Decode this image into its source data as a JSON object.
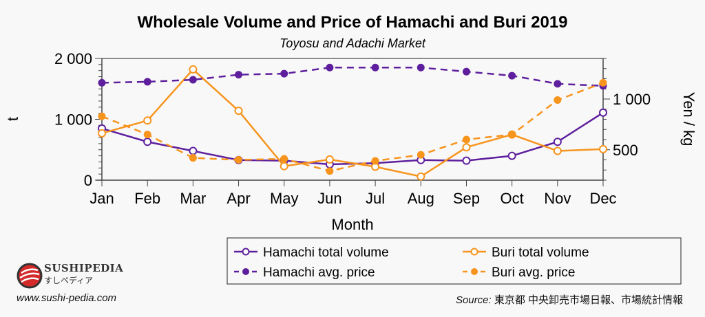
{
  "chart_data": {
    "type": "line",
    "title": "Wholesale Volume and Price of Hamachi and Buri 2019",
    "subtitle": "Toyosu and Adachi Market",
    "xlabel": "Month",
    "ylabel": "t",
    "ylabel_right": "Yen / kg",
    "categories": [
      "Jan",
      "Feb",
      "Mar",
      "Apr",
      "May",
      "Jun",
      "Jul",
      "Aug",
      "Sep",
      "Oct",
      "Nov",
      "Dec"
    ],
    "ylim": [
      0,
      2000
    ],
    "yticks": [
      0,
      1000,
      2000
    ],
    "ytick_labels": [
      "0",
      "1 000",
      "2 000"
    ],
    "ylim_right": [
      200,
      1400
    ],
    "yticks_right": [
      500,
      1000
    ],
    "ytick_labels_right": [
      "500",
      "1 000"
    ],
    "grid": false,
    "legend_placement": "bottom",
    "series": [
      {
        "name": "Hamachi total volume",
        "axis": "left",
        "style": "solid-open",
        "color": "#5e1f9e",
        "values": [
          850,
          630,
          480,
          330,
          320,
          260,
          280,
          330,
          320,
          400,
          630,
          1110
        ]
      },
      {
        "name": "Buri total volume",
        "axis": "left",
        "style": "solid-open",
        "color": "#f7941d",
        "values": [
          770,
          980,
          1820,
          1140,
          230,
          340,
          220,
          60,
          540,
          750,
          480,
          510
        ]
      },
      {
        "name": "Hamachi avg. price",
        "axis": "right",
        "style": "dashed-filled",
        "color": "#5e1f9e",
        "values": [
          1160,
          1170,
          1190,
          1240,
          1250,
          1310,
          1310,
          1310,
          1270,
          1230,
          1150,
          1130
        ]
      },
      {
        "name": "Buri avg. price",
        "axis": "right",
        "style": "dashed-filled",
        "color": "#f7941d",
        "values": [
          830,
          650,
          420,
          400,
          410,
          290,
          390,
          450,
          600,
          650,
          990,
          1160
        ]
      }
    ]
  },
  "branding": {
    "logo_name": "SUSHIPEDIA",
    "logo_kana": "すしペディア",
    "url": "www.sushi-pedia.com"
  },
  "source": {
    "label": "Source:",
    "text": " 東京都 中央卸売市場日報、市場統計情報"
  }
}
